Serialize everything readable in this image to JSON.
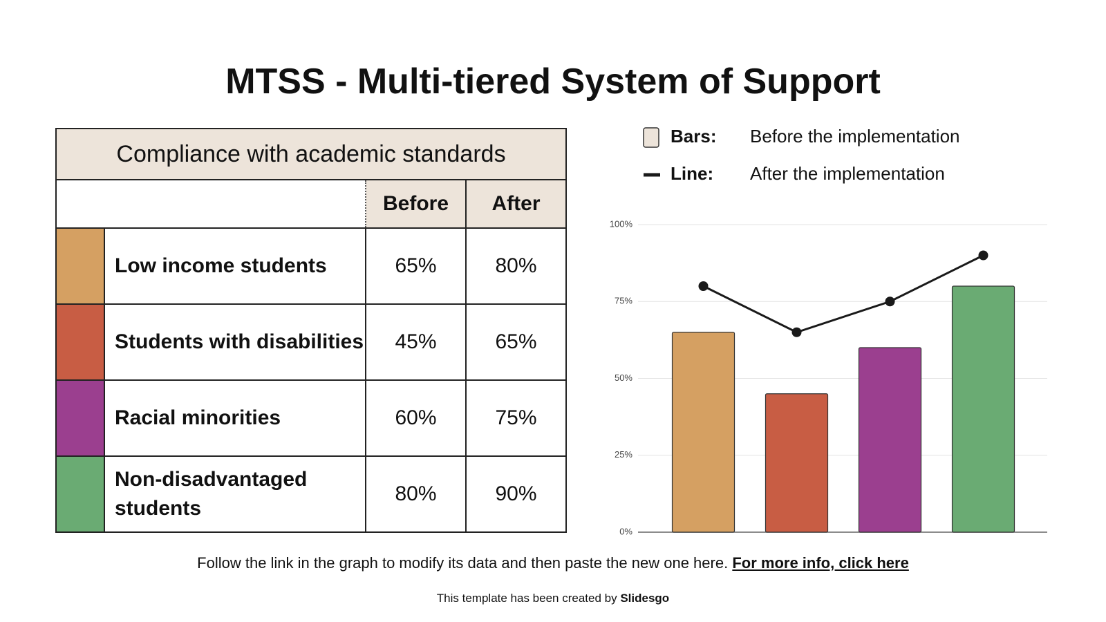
{
  "title": "MTSS - Multi-tiered System of Support",
  "table": {
    "heading": "Compliance with academic standards",
    "columns": [
      "Before",
      "After"
    ],
    "rows": [
      {
        "color": "#d5a062",
        "label": "Low income students",
        "cells": [
          "65%",
          "80%"
        ]
      },
      {
        "color": "#c85d44",
        "label": "Students with disabilities",
        "cells": [
          "45%",
          "65%"
        ]
      },
      {
        "color": "#9b3f8f",
        "label": "Racial minorities",
        "cells": [
          "60%",
          "75%"
        ]
      },
      {
        "color": "#6aab73",
        "label": "Non-disadvantaged students",
        "cells": [
          "80%",
          "90%"
        ]
      }
    ]
  },
  "chart_data": {
    "type": "bar-line",
    "series": [
      {
        "name": "Before the implementation",
        "legend_label": "Bars:",
        "kind": "bar",
        "colors": [
          "#d5a062",
          "#c85d44",
          "#9b3f8f",
          "#6aab73"
        ],
        "values": [
          65,
          45,
          60,
          80
        ]
      },
      {
        "name": "After the implementation",
        "legend_label": "Line:",
        "kind": "line",
        "color": "#1a1a1a",
        "values": [
          80,
          65,
          75,
          90
        ]
      }
    ],
    "ylim": [
      0,
      100
    ],
    "yticks": [
      {
        "value": 0,
        "label": "0%"
      },
      {
        "value": 25,
        "label": "25%"
      },
      {
        "value": 50,
        "label": "50%"
      },
      {
        "value": 75,
        "label": "75%"
      },
      {
        "value": 100,
        "label": "100%"
      }
    ],
    "grid": true
  },
  "footer": {
    "note": "Follow the link in the graph to modify its data and then paste the new one here.",
    "link": "For more info, click here",
    "credit": "This template has been created by",
    "brand": "Slidesgo"
  }
}
